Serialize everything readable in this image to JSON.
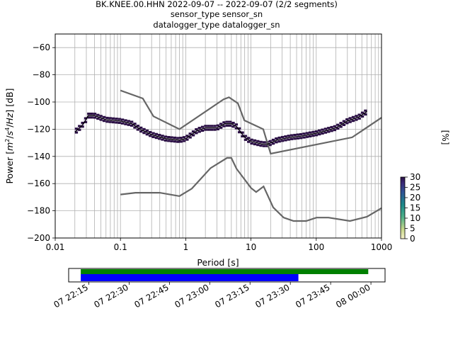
{
  "title_lines": [
    "BK.KNEE.00.HHN   2022-09-07 -- 2022-09-07  (2/2 segments)",
    "sensor_type  sensor_sn",
    "datalogger_type  datalogger_sn"
  ],
  "chart_data": [
    {
      "type": "ppsd_heatmap",
      "title": "BK.KNEE.00.HHN   2022-09-07 -- 2022-09-07  (2/2 segments)",
      "xlabel": "Period [s]",
      "ylabel": "Power [m²/s⁴/Hz] [dB]",
      "x_scale": "log",
      "xlim": [
        0.01,
        1000
      ],
      "ylim": [
        -200,
        -50
      ],
      "x_ticks": [
        0.01,
        0.1,
        1,
        10,
        100,
        1000
      ],
      "x_tick_labels": [
        "0.01",
        "0.1",
        "1",
        "10",
        "100",
        "1000"
      ],
      "y_ticks": [
        -200,
        -180,
        -160,
        -140,
        -120,
        -100,
        -80,
        -60
      ],
      "y_tick_labels": [
        "−200",
        "−180",
        "−160",
        "−140",
        "−120",
        "−100",
        "−80",
        "−60"
      ],
      "grid": true,
      "series": [
        {
          "name": "",
          "role": "high noise model",
          "color": "#666666",
          "x": [
            0.1,
            0.22,
            0.32,
            0.8,
            3.8,
            4.6,
            6.3,
            7.9,
            15.4,
            20,
            354.8,
            1000
          ],
          "y": [
            -91.5,
            -97.4,
            -110.5,
            -120,
            -98,
            -96.5,
            -101,
            -113.5,
            -120,
            -138,
            -126,
            -111.5
          ]
        },
        {
          "name": "",
          "role": "low noise model",
          "color": "#666666",
          "x": [
            0.1,
            0.17,
            0.4,
            0.8,
            1.24,
            2.4,
            4.3,
            5,
            6,
            10,
            12,
            15.6,
            21.9,
            31.6,
            45,
            70,
            101,
            154,
            328,
            600,
            1000
          ],
          "y": [
            -168,
            -166.7,
            -166.7,
            -169.2,
            -163.7,
            -148.6,
            -141.1,
            -141.1,
            -149,
            -163.2,
            -166.2,
            -162.1,
            -177.5,
            -185,
            -187.5,
            -187.5,
            -185,
            -185,
            -187.5,
            -184.4,
            -178
          ]
        },
        {
          "name": "",
          "role": "mean",
          "color": "#000000",
          "x": [
            0.02,
            0.025,
            0.028,
            0.032,
            0.04,
            0.06,
            0.1,
            0.15,
            0.2,
            0.3,
            0.5,
            0.8,
            1.0,
            1.5,
            2.0,
            3.0,
            4.0,
            5.0,
            6.0,
            8.0,
            10,
            15,
            18,
            25,
            40,
            60,
            100,
            200,
            300,
            450,
            600
          ],
          "y": [
            -122,
            -118,
            -115,
            -110,
            -110,
            -113,
            -114,
            -116,
            -120,
            -124,
            -127,
            -128,
            -127,
            -121,
            -119,
            -119,
            -116,
            -116,
            -118,
            -126,
            -129,
            -131,
            -131,
            -128,
            -126,
            -125,
            -123,
            -119,
            -114,
            -111,
            -107
          ]
        }
      ],
      "colorbar": {
        "label": "[%]",
        "range": [
          0,
          30
        ],
        "ticks": [
          0,
          5,
          10,
          15,
          20,
          25,
          30
        ],
        "colormap": "pqlx-like"
      }
    },
    {
      "type": "timeline",
      "x_tick_labels": [
        "07 22:15",
        "07 22:30",
        "07 22:45",
        "07 23:00",
        "07 23:15",
        "07 23:30",
        "07 23:45",
        "08 00:00"
      ],
      "xlim": [
        "22:07:30",
        "00:05:15"
      ],
      "bars": [
        {
          "color": "#008000",
          "start": "22:12:00",
          "end": "23:59:00"
        },
        {
          "color": "#0000ff",
          "start": "22:12:00",
          "end": "23:33:00"
        }
      ]
    }
  ]
}
